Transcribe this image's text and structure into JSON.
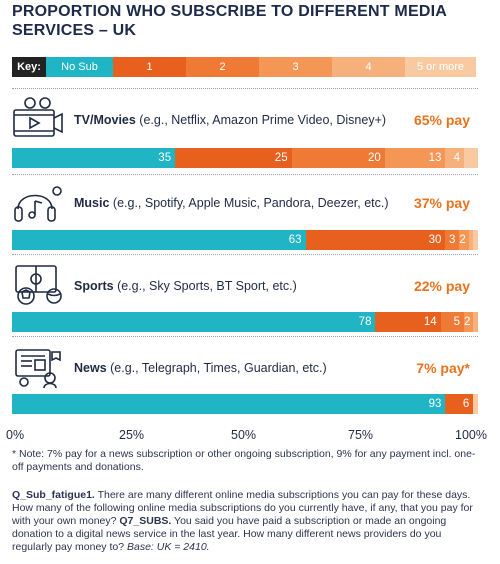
{
  "title": "PROPORTION WHO SUBSCRIBE TO DIFFERENT MEDIA SERVICES – UK",
  "key": {
    "label": "Key:",
    "items": [
      "No Sub",
      "1",
      "2",
      "3",
      "4",
      "5 or more"
    ],
    "colors": [
      "#1fb5c4",
      "#e8601e",
      "#ee7a35",
      "#f39656",
      "#f6b07c",
      "#f9c9a2"
    ]
  },
  "axis_ticks": [
    "0%",
    "25%",
    "50%",
    "75%",
    "100%"
  ],
  "chart_data": {
    "type": "bar",
    "orientation": "horizontal",
    "stacked": true,
    "xlim": [
      0,
      100
    ],
    "categories": [
      {
        "name": "TV/Movies",
        "examples": " (e.g., Netflix, Amazon Prime Video, Disney+)",
        "pay": "65% pay",
        "values": [
          35,
          25,
          20,
          13,
          4,
          3
        ],
        "labels": [
          "35",
          "25",
          "20",
          "13",
          "4",
          ""
        ]
      },
      {
        "name": "Music",
        "examples": " (e.g., Spotify, Apple Music, Pandora, Deezer, etc.)",
        "pay": "37% pay",
        "values": [
          63,
          30,
          3,
          2,
          1,
          1
        ],
        "labels": [
          "63",
          "30",
          "3",
          "2",
          "",
          ""
        ]
      },
      {
        "name": "Sports",
        "examples": " (e.g., Sky Sports, BT Sport, etc.)",
        "pay": "22% pay",
        "values": [
          78,
          14,
          5,
          2,
          1,
          0
        ],
        "labels": [
          "78",
          "14",
          "5",
          "2",
          "",
          ""
        ]
      },
      {
        "name": "News",
        "examples": " (e.g., Telegraph, Times, Guardian, etc.)",
        "pay": "7% pay*",
        "values": [
          93,
          6,
          0,
          0,
          0,
          1
        ],
        "labels": [
          "93",
          "6",
          "",
          "",
          "",
          ""
        ]
      }
    ]
  },
  "note": "* Note: 7% pay for a news subscription or other ongoing subscription, 9% for any payment incl. one-off payments and donations.",
  "question": {
    "code1": "Q_Sub_fatigue1.",
    "text1": " There are many different online media subscriptions you can pay for these days. How many of the following online media subscriptions do you currently have, if any, that you pay for with your own money? ",
    "code2": "Q7_SUBS.",
    "text2": " You said you have paid a subscription or made an ongoing donation to a digital news service in the last year. How many different news providers do you regularly pay money to? ",
    "base": "Base: UK = 2410."
  }
}
